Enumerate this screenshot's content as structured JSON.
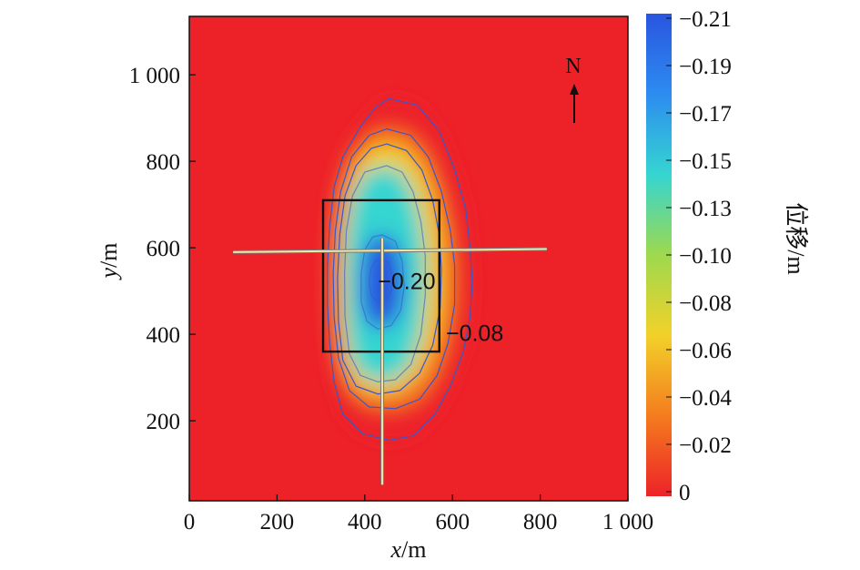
{
  "chart_data": {
    "type": "heatmap",
    "title": "",
    "xlabel": {
      "var": "x",
      "unit": "/m"
    },
    "ylabel": {
      "var": "y",
      "unit": "/m"
    },
    "xlim": [
      0,
      1000
    ],
    "ylim": [
      15,
      1135
    ],
    "x_ticks": [
      {
        "value": 0,
        "label": "0"
      },
      {
        "value": 200,
        "label": "200"
      },
      {
        "value": 400,
        "label": "400"
      },
      {
        "value": 600,
        "label": "600"
      },
      {
        "value": 800,
        "label": "800"
      },
      {
        "value": 1000,
        "label": "1 000"
      }
    ],
    "y_ticks": [
      {
        "value": 200,
        "label": "200"
      },
      {
        "value": 400,
        "label": "400"
      },
      {
        "value": 600,
        "label": "600"
      },
      {
        "value": 800,
        "label": "800"
      },
      {
        "value": 1000,
        "label": "1 000"
      }
    ],
    "colorbar": {
      "label": "位移/m",
      "range": [
        -0.21,
        0
      ],
      "ticks": [
        "−0.21",
        "−0.19",
        "−0.17",
        "−0.15",
        "−0.13",
        "−0.10",
        "−0.08",
        "−0.06",
        "−0.04",
        "−0.02",
        "0"
      ],
      "colors": [
        "#ed2229",
        "#f47c1e",
        "#f2d12a",
        "#9ed94e",
        "#35d5d1",
        "#2d8cf0",
        "#2a55e0"
      ]
    },
    "displacement_field": {
      "center": [
        440,
        530
      ],
      "max_value": -0.21,
      "contours": [
        {
          "value": -0.01,
          "points": [
            [
              455,
              945
            ],
            [
              520,
              930
            ],
            [
              570,
              870
            ],
            [
              605,
              780
            ],
            [
              630,
              690
            ],
            [
              640,
              600
            ],
            [
              645,
              520
            ],
            [
              640,
              440
            ],
            [
              625,
              360
            ],
            [
              595,
              280
            ],
            [
              560,
              215
            ],
            [
              510,
              165
            ],
            [
              455,
              155
            ],
            [
              395,
              170
            ],
            [
              350,
              215
            ],
            [
              330,
              290
            ],
            [
              320,
              380
            ],
            [
              315,
              470
            ],
            [
              315,
              560
            ],
            [
              320,
              650
            ],
            [
              330,
              740
            ],
            [
              350,
              810
            ],
            [
              390,
              880
            ],
            [
              425,
              925
            ]
          ]
        },
        {
          "value": -0.05,
          "points": [
            [
              450,
              875
            ],
            [
              505,
              860
            ],
            [
              545,
              810
            ],
            [
              575,
              730
            ],
            [
              595,
              640
            ],
            [
              605,
              560
            ],
            [
              605,
              470
            ],
            [
              590,
              380
            ],
            [
              565,
              305
            ],
            [
              525,
              250
            ],
            [
              470,
              228
            ],
            [
              410,
              232
            ],
            [
              365,
              270
            ],
            [
              340,
              345
            ],
            [
              330,
              440
            ],
            [
              328,
              540
            ],
            [
              333,
              640
            ],
            [
              345,
              730
            ],
            [
              370,
              810
            ],
            [
              410,
              860
            ]
          ]
        },
        {
          "value": -0.08,
          "points": [
            [
              450,
              840
            ],
            [
              495,
              825
            ],
            [
              530,
              780
            ],
            [
              555,
              710
            ],
            [
              570,
              630
            ],
            [
              575,
              550
            ],
            [
              572,
              460
            ],
            [
              555,
              375
            ],
            [
              525,
              310
            ],
            [
              480,
              270
            ],
            [
              430,
              262
            ],
            [
              380,
              280
            ],
            [
              350,
              340
            ],
            [
              340,
              430
            ],
            [
              338,
              530
            ],
            [
              343,
              630
            ],
            [
              355,
              720
            ],
            [
              380,
              790
            ],
            [
              415,
              830
            ]
          ]
        },
        {
          "value": -0.15,
          "points": [
            [
              450,
              790
            ],
            [
              485,
              775
            ],
            [
              510,
              730
            ],
            [
              528,
              660
            ],
            [
              538,
              580
            ],
            [
              538,
              490
            ],
            [
              528,
              400
            ],
            [
              505,
              330
            ],
            [
              470,
              295
            ],
            [
              430,
              290
            ],
            [
              390,
              305
            ],
            [
              365,
              355
            ],
            [
              355,
              440
            ],
            [
              354,
              540
            ],
            [
              358,
              640
            ],
            [
              372,
              720
            ],
            [
              400,
              775
            ]
          ]
        },
        {
          "value": -0.2,
          "points": [
            [
              440,
              630
            ],
            [
              470,
              615
            ],
            [
              485,
              570
            ],
            [
              490,
              510
            ],
            [
              482,
              455
            ],
            [
              460,
              420
            ],
            [
              430,
              412
            ],
            [
              405,
              430
            ],
            [
              392,
              475
            ],
            [
              392,
              540
            ],
            [
              400,
              595
            ],
            [
              418,
              625
            ]
          ]
        },
        {
          "value": -0.205,
          "points": [
            [
              438,
              575
            ],
            [
              455,
              565
            ],
            [
              462,
              535
            ],
            [
              460,
              500
            ],
            [
              448,
              478
            ],
            [
              430,
              474
            ],
            [
              415,
              490
            ],
            [
              410,
              520
            ],
            [
              414,
              552
            ],
            [
              425,
              570
            ]
          ]
        }
      ]
    },
    "annotations": [
      {
        "text": "−0.20",
        "x": 430,
        "y": 505
      },
      {
        "text": "−0.08",
        "x": 585,
        "y": 385
      }
    ],
    "work_area": {
      "x_min": 305,
      "x_max": 570,
      "y_min": 360,
      "y_max": 710
    },
    "survey_lines": [
      {
        "x1": 100,
        "y1": 590,
        "x2": 815,
        "y2": 597
      },
      {
        "x1": 440,
        "y1": 52,
        "x2": 440,
        "y2": 622
      }
    ],
    "north_arrow": {
      "label": "N"
    }
  }
}
